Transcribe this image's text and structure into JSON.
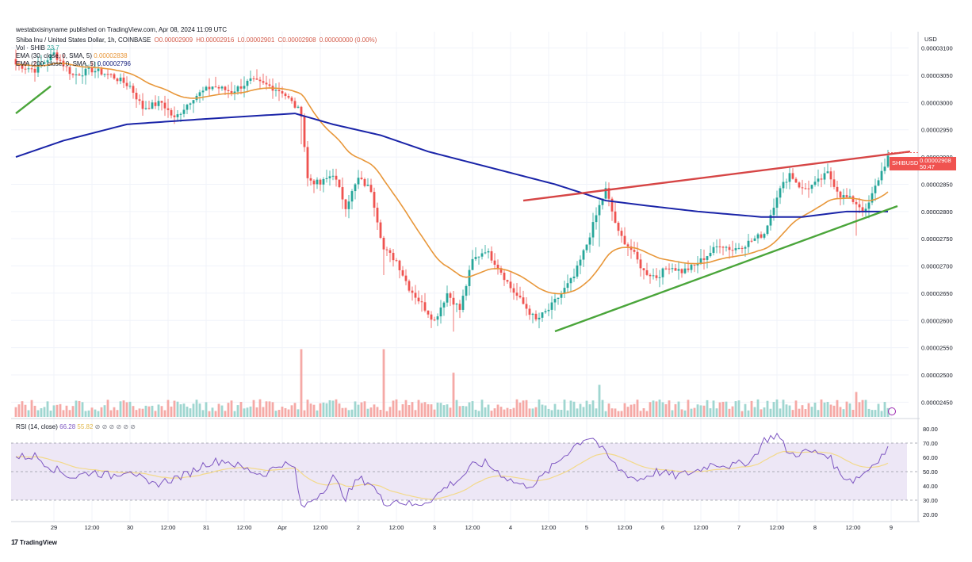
{
  "header": {
    "published": "westabxisinyname published on TradingView.com, Apr 08, 2024 11:09 UTC",
    "ohlc_line": "Shiba Inu / United States Dollar, 1h, COINBASE",
    "ohlc": {
      "o": "O0.00002909",
      "h": "H0.00002916",
      "l": "L0.00002901",
      "c": "C0.00002908",
      "chg": "0.00000000 (0.00%)"
    },
    "vol_label": "Vol · SHIB",
    "vol_value": "23.7",
    "ema30_label": "EMA (30, close, 0, SMA, 5)",
    "ema30_value": "0.00002838",
    "ema200_label": "EMA (200, close, 0, SMA, 5)",
    "ema200_value": "0.00002796",
    "rsi_label": "RSI (14, close)",
    "rsi_value": "66.28",
    "rsi_ma_value": "55.82",
    "rsi_icons": "⊘ ⊘ ⊘ ⊘ ⊘ ⊘"
  },
  "price_axis": {
    "currency": "USD",
    "ticks": [
      "0.00003100",
      "0.00003050",
      "0.00003000",
      "0.00002950",
      "0.00002900",
      "0.00002850",
      "0.00002800",
      "0.00002750",
      "0.00002700",
      "0.00002650",
      "0.00002600",
      "0.00002550",
      "0.00002500",
      "0.00002450"
    ]
  },
  "rsi_axis": {
    "ticks": [
      "80.00",
      "70.00",
      "60.00",
      "50.00",
      "40.00",
      "30.00",
      "20.00"
    ]
  },
  "price_tag": {
    "symbol": "SHIBUSD",
    "price": "0.00002908",
    "countdown": "50:47"
  },
  "branding": {
    "logo_text": "TradingView",
    "logo_mark": "17"
  },
  "colors": {
    "up": "#26a69a",
    "down": "#ef5350",
    "ema30": "#e8973a",
    "ema200": "#1a24a8",
    "resistance": "#d64545",
    "support": "#4aa53a",
    "rsi": "#7e57c2",
    "rsi_ma": "#f3d98a",
    "rsi_band": "#ede7f6"
  },
  "chart_data": {
    "type": "candlestick",
    "title": "Shiba Inu / United States Dollar, 1h, COINBASE",
    "x_labels": [
      "29",
      "12:00",
      "30",
      "12:00",
      "31",
      "12:00",
      "Apr",
      "12:00",
      "2",
      "12:00",
      "3",
      "12:00",
      "4",
      "12:00",
      "5",
      "12:00",
      "6",
      "12:00",
      "7",
      "12:00",
      "8",
      "12:00",
      "9"
    ],
    "ylim": [
      2.42e-05,
      3.13e-05
    ],
    "close_anchors": [
      [
        0,
        3.07e-05
      ],
      [
        6,
        3.06e-05
      ],
      [
        12,
        3.09e-05
      ],
      [
        18,
        3.05e-05
      ],
      [
        24,
        3.06e-05
      ],
      [
        30,
        3.05e-05
      ],
      [
        36,
        3.03e-05
      ],
      [
        40,
        2.99e-05
      ],
      [
        46,
        3e-05
      ],
      [
        50,
        2.97e-05
      ],
      [
        56,
        3.01e-05
      ],
      [
        62,
        3.03e-05
      ],
      [
        68,
        3.02e-05
      ],
      [
        74,
        3.04e-05
      ],
      [
        80,
        3.03e-05
      ],
      [
        84,
        3.02e-05
      ],
      [
        90,
        2.98e-05
      ],
      [
        92,
        2.86e-05
      ],
      [
        96,
        2.85e-05
      ],
      [
        100,
        2.87e-05
      ],
      [
        104,
        2.81e-05
      ],
      [
        108,
        2.86e-05
      ],
      [
        112,
        2.84e-05
      ],
      [
        116,
        2.73e-05
      ],
      [
        120,
        2.71e-05
      ],
      [
        124,
        2.66e-05
      ],
      [
        128,
        2.63e-05
      ],
      [
        132,
        2.6e-05
      ],
      [
        136,
        2.65e-05
      ],
      [
        140,
        2.62e-05
      ],
      [
        144,
        2.71e-05
      ],
      [
        148,
        2.73e-05
      ],
      [
        152,
        2.7e-05
      ],
      [
        156,
        2.66e-05
      ],
      [
        160,
        2.63e-05
      ],
      [
        164,
        2.6e-05
      ],
      [
        168,
        2.62e-05
      ],
      [
        172,
        2.65e-05
      ],
      [
        176,
        2.68e-05
      ],
      [
        180,
        2.74e-05
      ],
      [
        184,
        2.81e-05
      ],
      [
        186,
        2.84e-05
      ],
      [
        190,
        2.76e-05
      ],
      [
        194,
        2.73e-05
      ],
      [
        198,
        2.69e-05
      ],
      [
        202,
        2.68e-05
      ],
      [
        206,
        2.7e-05
      ],
      [
        210,
        2.69e-05
      ],
      [
        214,
        2.7e-05
      ],
      [
        218,
        2.72e-05
      ],
      [
        222,
        2.74e-05
      ],
      [
        226,
        2.73e-05
      ],
      [
        230,
        2.74e-05
      ],
      [
        236,
        2.76e-05
      ],
      [
        240,
        2.83e-05
      ],
      [
        244,
        2.87e-05
      ],
      [
        248,
        2.84e-05
      ],
      [
        252,
        2.85e-05
      ],
      [
        256,
        2.87e-05
      ],
      [
        260,
        2.83e-05
      ],
      [
        264,
        2.82e-05
      ],
      [
        268,
        2.8e-05
      ],
      [
        272,
        2.86e-05
      ],
      [
        275,
        2.9e-05
      ]
    ],
    "ema200_anchors": [
      [
        0,
        2.9e-05
      ],
      [
        15,
        2.93e-05
      ],
      [
        35,
        2.96e-05
      ],
      [
        60,
        2.97e-05
      ],
      [
        88,
        2.98e-05
      ],
      [
        100,
        2.96e-05
      ],
      [
        115,
        2.94e-05
      ],
      [
        130,
        2.91e-05
      ],
      [
        150,
        2.88e-05
      ],
      [
        170,
        2.85e-05
      ],
      [
        186,
        2.82e-05
      ],
      [
        200,
        2.81e-05
      ],
      [
        215,
        2.8e-05
      ],
      [
        235,
        2.79e-05
      ],
      [
        248,
        2.79e-05
      ],
      [
        262,
        2.8e-05
      ],
      [
        275,
        2.8e-05
      ]
    ],
    "resistance_line": [
      [
        160,
        2.82e-05
      ],
      [
        282,
        2.91e-05
      ]
    ],
    "support_line": [
      [
        170,
        2.58e-05
      ],
      [
        278,
        2.81e-05
      ]
    ],
    "early_support_line": [
      [
        0,
        2.98e-05
      ],
      [
        11,
        3.03e-05
      ]
    ],
    "volume_spikes": [
      [
        90,
        0.95
      ],
      [
        116,
        0.95
      ],
      [
        138,
        0.62
      ],
      [
        184,
        0.45
      ],
      [
        265,
        0.35
      ]
    ],
    "rsi_anchors": [
      [
        0,
        60
      ],
      [
        6,
        61
      ],
      [
        12,
        52
      ],
      [
        18,
        46
      ],
      [
        24,
        50
      ],
      [
        30,
        47
      ],
      [
        36,
        52
      ],
      [
        42,
        40
      ],
      [
        48,
        44
      ],
      [
        54,
        48
      ],
      [
        60,
        56
      ],
      [
        66,
        58
      ],
      [
        72,
        52
      ],
      [
        78,
        48
      ],
      [
        84,
        56
      ],
      [
        88,
        52
      ],
      [
        90,
        24
      ],
      [
        96,
        35
      ],
      [
        100,
        46
      ],
      [
        104,
        32
      ],
      [
        108,
        45
      ],
      [
        112,
        42
      ],
      [
        116,
        28
      ],
      [
        120,
        30
      ],
      [
        126,
        26
      ],
      [
        132,
        32
      ],
      [
        136,
        40
      ],
      [
        140,
        45
      ],
      [
        144,
        54
      ],
      [
        148,
        56
      ],
      [
        152,
        50
      ],
      [
        156,
        44
      ],
      [
        160,
        40
      ],
      [
        164,
        42
      ],
      [
        170,
        55
      ],
      [
        176,
        68
      ],
      [
        180,
        74
      ],
      [
        182,
        74
      ],
      [
        186,
        62
      ],
      [
        190,
        52
      ],
      [
        196,
        44
      ],
      [
        202,
        50
      ],
      [
        208,
        47
      ],
      [
        214,
        50
      ],
      [
        220,
        56
      ],
      [
        226,
        54
      ],
      [
        232,
        58
      ],
      [
        236,
        72
      ],
      [
        240,
        76
      ],
      [
        244,
        62
      ],
      [
        250,
        64
      ],
      [
        256,
        62
      ],
      [
        260,
        48
      ],
      [
        264,
        44
      ],
      [
        268,
        50
      ],
      [
        275,
        66
      ]
    ],
    "rsi_ylim": [
      15,
      85
    ],
    "rsi_bands": [
      30,
      70
    ],
    "rsi_mid": 50
  }
}
